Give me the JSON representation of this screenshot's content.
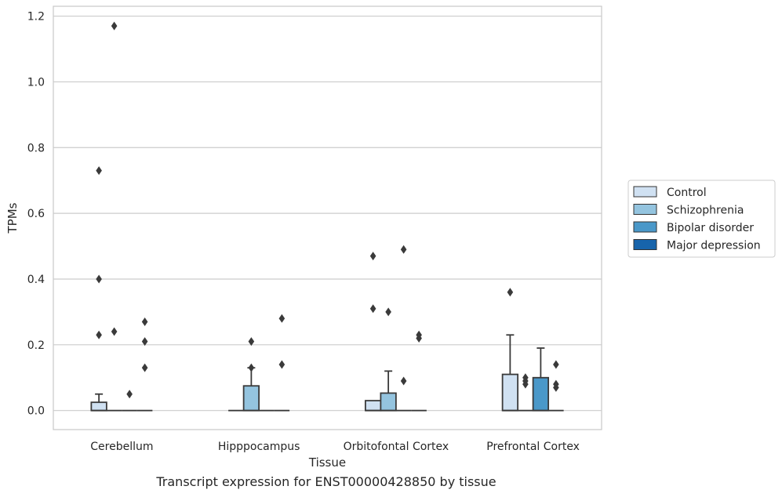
{
  "caption": "Transcript expression for ENST00000428850 by tissue",
  "colors": {
    "Control": "#d0e1f2",
    "Schizophrenia": "#94c4df",
    "Bipolar disorder": "#4a98c9",
    "Major depression": "#1764ab",
    "box_line": "#3a3a3a",
    "grid": "#cccccc",
    "frame": "#cccccc"
  },
  "chart_data": {
    "type": "box",
    "xlabel": "Tissue",
    "ylabel": "TPMs",
    "categories": [
      "Cerebellum",
      "Hipppocampus",
      "Orbitofontal Cortex",
      "Prefrontal Cortex"
    ],
    "ylim": [
      -0.058,
      1.23
    ],
    "yticks": [
      0.0,
      0.2,
      0.4,
      0.6,
      0.8,
      1.0,
      1.2
    ],
    "ytick_labels": [
      "0.0",
      "0.2",
      "0.4",
      "0.6",
      "0.8",
      "1.0",
      "1.2"
    ],
    "grid": "horizontal",
    "legend_position": "right",
    "series": [
      {
        "name": "Control",
        "boxes": [
          {
            "q1": 0,
            "median": 0,
            "q3": 0.025,
            "whisker_low": 0,
            "whisker_high": 0.05,
            "outliers": [
              0.23,
              0.4,
              0.73
            ]
          },
          {
            "q1": 0,
            "median": 0,
            "q3": 0,
            "whisker_low": 0,
            "whisker_high": 0,
            "outliers": []
          },
          {
            "q1": 0,
            "median": 0,
            "q3": 0.03,
            "whisker_low": 0,
            "whisker_high": 0.03,
            "outliers": [
              0.31,
              0.47
            ]
          },
          {
            "q1": 0,
            "median": 0,
            "q3": 0.11,
            "whisker_low": 0,
            "whisker_high": 0.23,
            "outliers": [
              0.36
            ]
          }
        ]
      },
      {
        "name": "Schizophrenia",
        "boxes": [
          {
            "q1": 0,
            "median": 0,
            "q3": 0,
            "whisker_low": 0,
            "whisker_high": 0,
            "outliers": [
              0.24,
              1.17
            ]
          },
          {
            "q1": 0,
            "median": 0,
            "q3": 0.075,
            "whisker_low": 0,
            "whisker_high": 0.13,
            "outliers": [
              0.13,
              0.21
            ]
          },
          {
            "q1": 0,
            "median": 0,
            "q3": 0.053,
            "whisker_low": 0,
            "whisker_high": 0.12,
            "outliers": [
              0.3
            ]
          },
          {
            "q1": 0,
            "median": 0,
            "q3": 0,
            "whisker_low": 0,
            "whisker_high": 0,
            "outliers": [
              0.08,
              0.09,
              0.1
            ]
          }
        ]
      },
      {
        "name": "Bipolar disorder",
        "boxes": [
          {
            "q1": 0,
            "median": 0,
            "q3": 0,
            "whisker_low": 0,
            "whisker_high": 0,
            "outliers": [
              0.05
            ]
          },
          {
            "q1": 0,
            "median": 0,
            "q3": 0,
            "whisker_low": 0,
            "whisker_high": 0,
            "outliers": []
          },
          {
            "q1": 0,
            "median": 0,
            "q3": 0,
            "whisker_low": 0,
            "whisker_high": 0,
            "outliers": [
              0.09,
              0.49
            ]
          },
          {
            "q1": 0,
            "median": 0,
            "q3": 0.1,
            "whisker_low": 0,
            "whisker_high": 0.19,
            "outliers": []
          }
        ]
      },
      {
        "name": "Major depression",
        "boxes": [
          {
            "q1": 0,
            "median": 0,
            "q3": 0,
            "whisker_low": 0,
            "whisker_high": 0,
            "outliers": [
              0.13,
              0.21,
              0.27
            ]
          },
          {
            "q1": 0,
            "median": 0,
            "q3": 0,
            "whisker_low": 0,
            "whisker_high": 0,
            "outliers": [
              0.14,
              0.28
            ]
          },
          {
            "q1": 0,
            "median": 0,
            "q3": 0,
            "whisker_low": 0,
            "whisker_high": 0,
            "outliers": [
              0.22,
              0.23
            ]
          },
          {
            "q1": 0,
            "median": 0,
            "q3": 0,
            "whisker_low": 0,
            "whisker_high": 0,
            "outliers": [
              0.07,
              0.08,
              0.14
            ]
          }
        ]
      }
    ]
  }
}
